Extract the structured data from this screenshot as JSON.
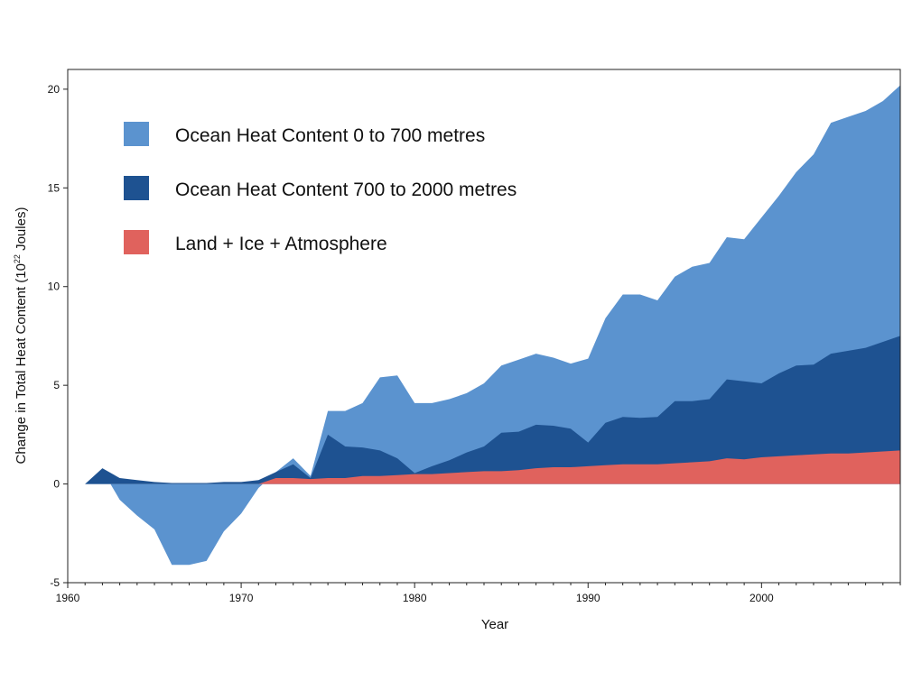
{
  "chart_data": {
    "type": "area",
    "stacked": true,
    "title": "",
    "xlabel": "Year",
    "ylabel": "Change in Total Heat Content (10",
    "ylabel_sup": "22",
    "ylabel_end": " Joules)",
    "xlim": [
      1960,
      2008
    ],
    "ylim": [
      -5,
      21
    ],
    "x_ticks": [
      1960,
      1970,
      1980,
      1990,
      2000
    ],
    "x_minor_step": 1,
    "y_ticks": [
      -5,
      0,
      5,
      10,
      15,
      20
    ],
    "grid": false,
    "legend_position": "top-left",
    "series": [
      {
        "name": "Land + Ice + Atmosphere",
        "color": "#e0625d",
        "points": [
          [
            1961,
            0
          ],
          [
            1962,
            0
          ],
          [
            1970,
            0
          ],
          [
            1971,
            0
          ],
          [
            1972,
            0.3
          ],
          [
            1973,
            0.3
          ],
          [
            1974,
            0.25
          ],
          [
            1975,
            0.3
          ],
          [
            1976,
            0.3
          ],
          [
            1977,
            0.4
          ],
          [
            1978,
            0.4
          ],
          [
            1979,
            0.45
          ],
          [
            1980,
            0.5
          ],
          [
            1981,
            0.5
          ],
          [
            1982,
            0.55
          ],
          [
            1983,
            0.6
          ],
          [
            1984,
            0.65
          ],
          [
            1985,
            0.65
          ],
          [
            1986,
            0.7
          ],
          [
            1987,
            0.8
          ],
          [
            1988,
            0.85
          ],
          [
            1989,
            0.85
          ],
          [
            1990,
            0.9
          ],
          [
            1991,
            0.95
          ],
          [
            1992,
            1.0
          ],
          [
            1993,
            1.0
          ],
          [
            1994,
            1.0
          ],
          [
            1995,
            1.05
          ],
          [
            1996,
            1.1
          ],
          [
            1997,
            1.15
          ],
          [
            1998,
            1.3
          ],
          [
            1999,
            1.25
          ],
          [
            2000,
            1.35
          ],
          [
            2001,
            1.4
          ],
          [
            2002,
            1.45
          ],
          [
            2003,
            1.5
          ],
          [
            2004,
            1.55
          ],
          [
            2005,
            1.55
          ],
          [
            2006,
            1.6
          ],
          [
            2007,
            1.65
          ],
          [
            2008,
            1.7
          ]
        ]
      },
      {
        "name": "Ocean Heat Content 700 to 2000 metres",
        "color": "#1e5291",
        "points": [
          [
            1961,
            0
          ],
          [
            1962,
            0.8
          ],
          [
            1963,
            0.3
          ],
          [
            1964,
            0.2
          ],
          [
            1965,
            0.1
          ],
          [
            1966,
            0.05
          ],
          [
            1967,
            0.05
          ],
          [
            1968,
            0.05
          ],
          [
            1969,
            0.1
          ],
          [
            1970,
            0.1
          ],
          [
            1971,
            0.2
          ],
          [
            1972,
            0.6
          ],
          [
            1973,
            1.0
          ],
          [
            1974,
            0.3
          ],
          [
            1975,
            2.5
          ],
          [
            1976,
            1.9
          ],
          [
            1977,
            1.85
          ],
          [
            1978,
            1.7
          ],
          [
            1979,
            1.3
          ],
          [
            1980,
            0.55
          ],
          [
            1981,
            0.9
          ],
          [
            1982,
            1.2
          ],
          [
            1983,
            1.6
          ],
          [
            1984,
            1.9
          ],
          [
            1985,
            2.6
          ],
          [
            1986,
            2.65
          ],
          [
            1987,
            3.0
          ],
          [
            1988,
            2.95
          ],
          [
            1989,
            2.8
          ],
          [
            1990,
            2.1
          ],
          [
            1991,
            3.1
          ],
          [
            1992,
            3.4
          ],
          [
            1993,
            3.35
          ],
          [
            1994,
            3.4
          ],
          [
            1995,
            4.2
          ],
          [
            1996,
            4.2
          ],
          [
            1997,
            4.3
          ],
          [
            1998,
            5.3
          ],
          [
            1999,
            5.2
          ],
          [
            2000,
            5.1
          ],
          [
            2001,
            5.6
          ],
          [
            2002,
            6.0
          ],
          [
            2003,
            6.05
          ],
          [
            2004,
            6.6
          ],
          [
            2005,
            6.75
          ],
          [
            2006,
            6.9
          ],
          [
            2007,
            7.2
          ],
          [
            2008,
            7.5
          ]
        ]
      },
      {
        "name": "Ocean Heat Content 0 to 700 metres",
        "color": "#5b93cf",
        "points": [
          [
            1961,
            0
          ],
          [
            1962,
            0.7
          ],
          [
            1963,
            -0.8
          ],
          [
            1964,
            -1.6
          ],
          [
            1965,
            -2.3
          ],
          [
            1966,
            -4.1
          ],
          [
            1967,
            -4.1
          ],
          [
            1968,
            -3.9
          ],
          [
            1969,
            -2.4
          ],
          [
            1970,
            -1.5
          ],
          [
            1971,
            -0.2
          ],
          [
            1972,
            0.6
          ],
          [
            1973,
            1.3
          ],
          [
            1974,
            0.4
          ],
          [
            1975,
            3.7
          ],
          [
            1976,
            3.7
          ],
          [
            1977,
            4.1
          ],
          [
            1978,
            5.4
          ],
          [
            1979,
            5.5
          ],
          [
            1980,
            4.1
          ],
          [
            1981,
            4.1
          ],
          [
            1982,
            4.3
          ],
          [
            1983,
            4.6
          ],
          [
            1984,
            5.1
          ],
          [
            1985,
            6.0
          ],
          [
            1986,
            6.3
          ],
          [
            1987,
            6.6
          ],
          [
            1988,
            6.4
          ],
          [
            1989,
            6.1
          ],
          [
            1990,
            6.35
          ],
          [
            1991,
            8.4
          ],
          [
            1992,
            9.6
          ],
          [
            1993,
            9.6
          ],
          [
            1994,
            9.3
          ],
          [
            1995,
            10.5
          ],
          [
            1996,
            11.0
          ],
          [
            1997,
            11.2
          ],
          [
            1998,
            12.5
          ],
          [
            1999,
            12.4
          ],
          [
            2000,
            13.5
          ],
          [
            2001,
            14.6
          ],
          [
            2002,
            15.8
          ],
          [
            2003,
            16.7
          ],
          [
            2004,
            18.3
          ],
          [
            2005,
            18.6
          ],
          [
            2006,
            18.9
          ],
          [
            2007,
            19.4
          ],
          [
            2008,
            20.2
          ]
        ]
      }
    ],
    "legend": [
      {
        "label": "Ocean Heat Content 0 to 700 metres",
        "color": "#5b93cf"
      },
      {
        "label": "Ocean Heat Content 700 to 2000 metres",
        "color": "#1e5291"
      },
      {
        "label": "Land + Ice + Atmosphere",
        "color": "#e0625d"
      }
    ]
  }
}
